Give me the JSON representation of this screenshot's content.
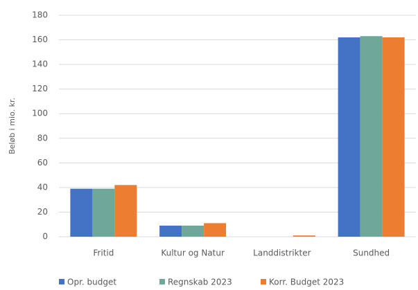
{
  "chart_data": {
    "type": "bar",
    "ylabel": "Beløb i mio. kr.",
    "categories": [
      "Fritid",
      "Kultur og Natur",
      "Landdistrikter",
      "Sundhed"
    ],
    "series": [
      {
        "name": "Opr. budget",
        "color": "#4472c4",
        "values": [
          39,
          9,
          0,
          162
        ]
      },
      {
        "name": "Regnskab 2023",
        "color": "#6fa89a",
        "values": [
          39,
          9,
          0,
          163
        ]
      },
      {
        "name": "Korr. Budget 2023",
        "color": "#ed7d31",
        "values": [
          42,
          11,
          1,
          162
        ]
      }
    ],
    "ylim": [
      0,
      180
    ],
    "yticks": [
      0,
      20,
      40,
      60,
      80,
      100,
      120,
      140,
      160,
      180
    ],
    "grid": true,
    "legend": "bottom"
  }
}
